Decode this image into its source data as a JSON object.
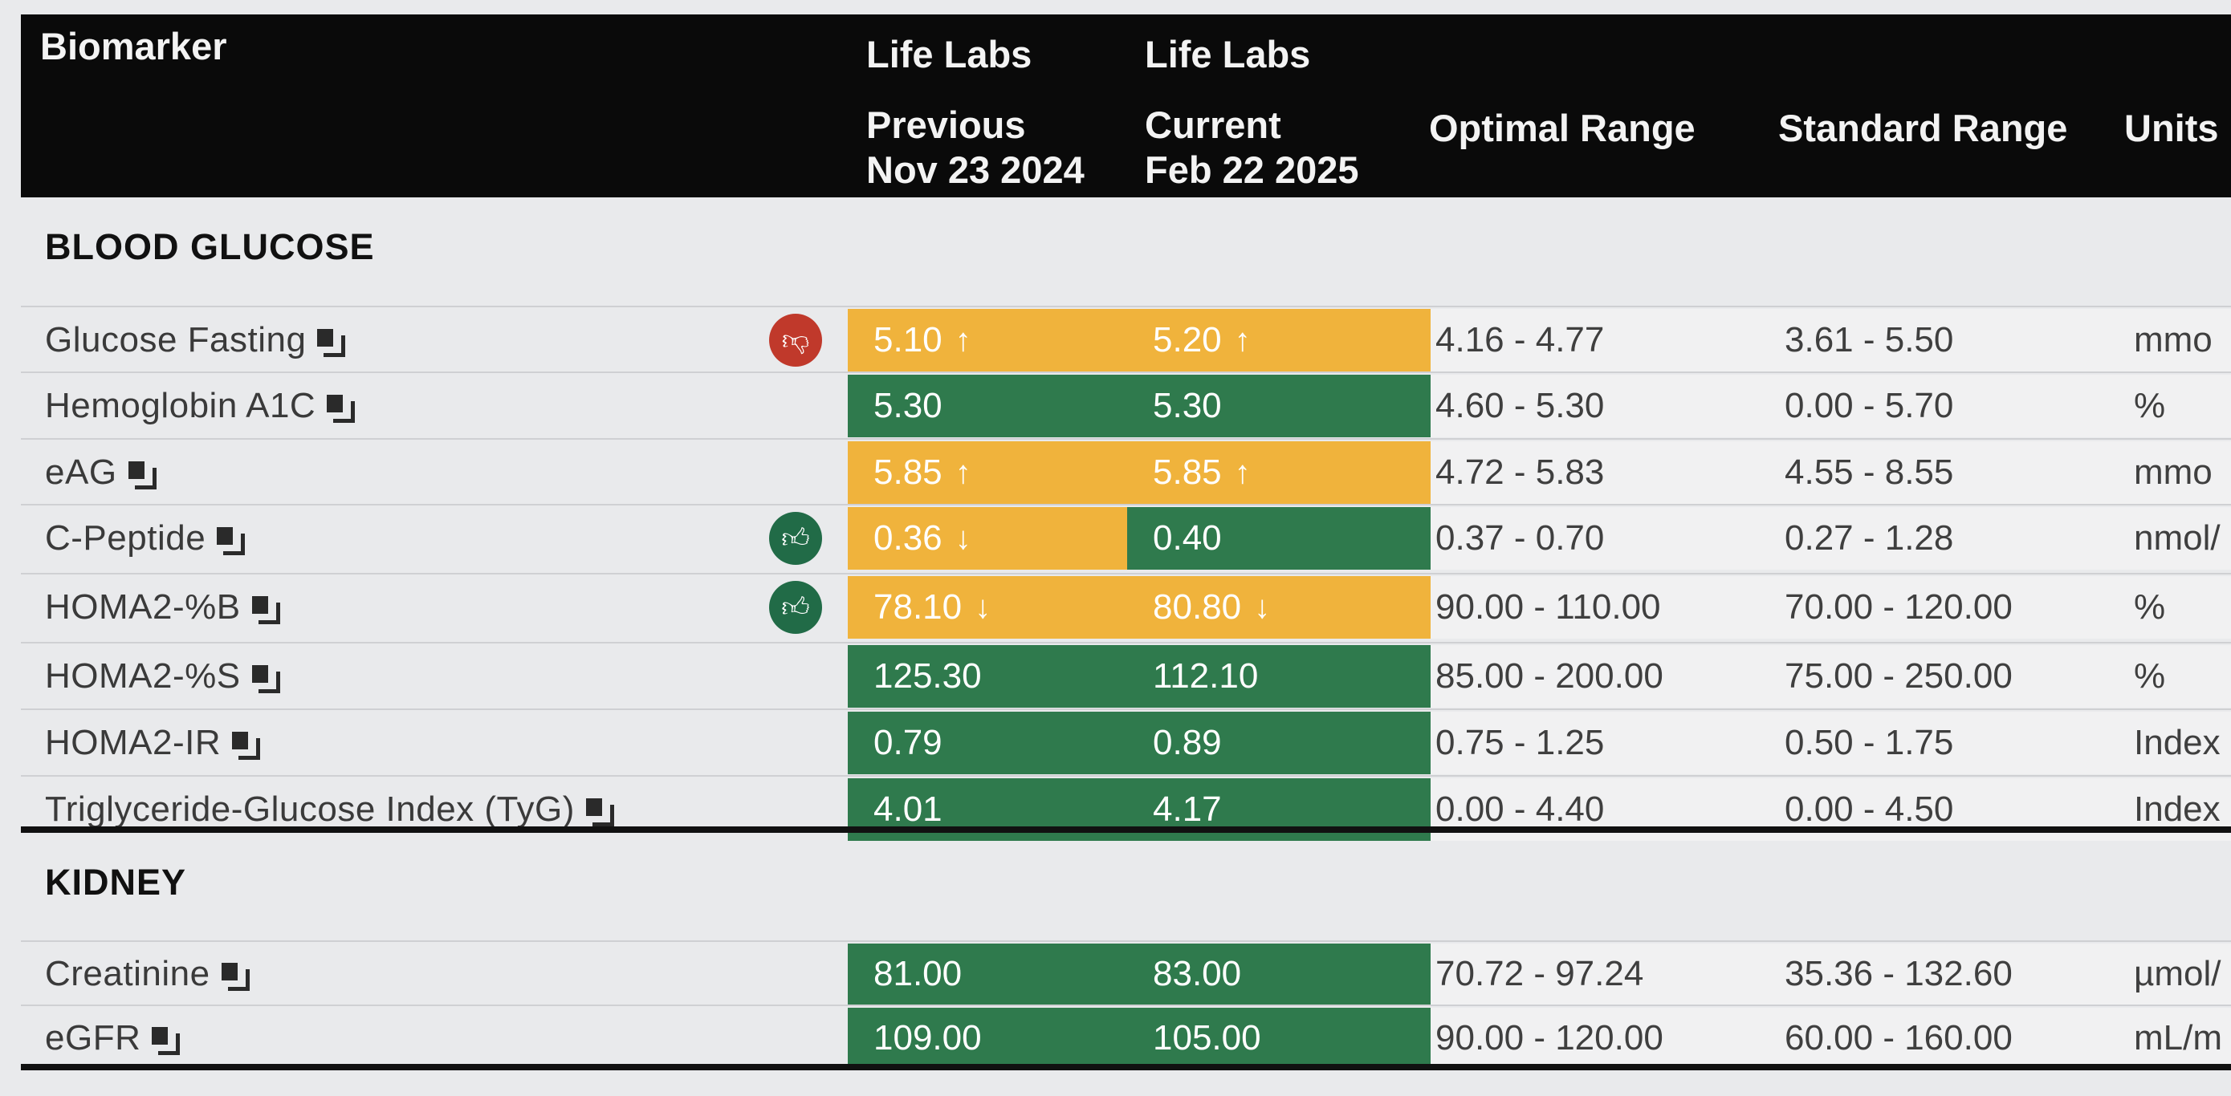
{
  "header": {
    "biomarker": "Biomarker",
    "prev_lab": "Life Labs",
    "prev_label": "Previous",
    "prev_date": "Nov 23 2024",
    "cur_lab": "Life Labs",
    "cur_label": "Current",
    "cur_date": "Feb 22 2025",
    "optimal": "Optimal Range",
    "standard": "Standard Range",
    "units": "Units"
  },
  "colors": {
    "in_range": "#2f7a4d",
    "out_of_range": "#f0b33c",
    "thumb_up": "#216b47",
    "thumb_down": "#c0392b"
  },
  "sections": [
    {
      "title": "BLOOD GLUCOSE",
      "rows": [
        {
          "name": "Glucose Fasting",
          "icon": "document-icon",
          "trend": "thumbs-down-icon",
          "prev": {
            "value": "5.10",
            "arrow": "↑",
            "status": "out-of-range"
          },
          "cur": {
            "value": "5.20",
            "arrow": "↑",
            "status": "out-of-range"
          },
          "optimal": "4.16 - 4.77",
          "standard": "3.61 - 5.50",
          "units": "mmo"
        },
        {
          "name": "Hemoglobin A1C",
          "icon": "document-icon",
          "trend": "",
          "prev": {
            "value": "5.30",
            "arrow": "",
            "status": "in-range"
          },
          "cur": {
            "value": "5.30",
            "arrow": "",
            "status": "in-range"
          },
          "optimal": "4.60 - 5.30",
          "standard": "0.00 - 5.70",
          "units": "%"
        },
        {
          "name": "eAG",
          "icon": "document-icon",
          "trend": "",
          "prev": {
            "value": "5.85",
            "arrow": "↑",
            "status": "out-of-range"
          },
          "cur": {
            "value": "5.85",
            "arrow": "↑",
            "status": "out-of-range"
          },
          "optimal": "4.72 - 5.83",
          "standard": "4.55 - 8.55",
          "units": "mmo"
        },
        {
          "name": "C-Peptide",
          "icon": "document-icon",
          "trend": "thumbs-up-icon",
          "prev": {
            "value": "0.36",
            "arrow": "↓",
            "status": "out-of-range"
          },
          "cur": {
            "value": "0.40",
            "arrow": "",
            "status": "in-range"
          },
          "optimal": "0.37 - 0.70",
          "standard": "0.27 - 1.28",
          "units": "nmol/"
        },
        {
          "name": "HOMA2-%B",
          "icon": "document-icon",
          "trend": "thumbs-up-icon",
          "prev": {
            "value": "78.10",
            "arrow": "↓",
            "status": "out-of-range"
          },
          "cur": {
            "value": "80.80",
            "arrow": "↓",
            "status": "out-of-range"
          },
          "optimal": "90.00 - 110.00",
          "standard": "70.00 - 120.00",
          "units": "%"
        },
        {
          "name": "HOMA2-%S",
          "icon": "document-icon",
          "trend": "",
          "prev": {
            "value": "125.30",
            "arrow": "",
            "status": "in-range"
          },
          "cur": {
            "value": "112.10",
            "arrow": "",
            "status": "in-range"
          },
          "optimal": "85.00 - 200.00",
          "standard": "75.00 - 250.00",
          "units": "%"
        },
        {
          "name": "HOMA2-IR",
          "icon": "document-icon",
          "trend": "",
          "prev": {
            "value": "0.79",
            "arrow": "",
            "status": "in-range"
          },
          "cur": {
            "value": "0.89",
            "arrow": "",
            "status": "in-range"
          },
          "optimal": "0.75 - 1.25",
          "standard": "0.50 - 1.75",
          "units": "Index"
        },
        {
          "name": "Triglyceride-Glucose Index (TyG)",
          "icon": "document-icon",
          "trend": "",
          "prev": {
            "value": "4.01",
            "arrow": "",
            "status": "in-range"
          },
          "cur": {
            "value": "4.17",
            "arrow": "",
            "status": "in-range"
          },
          "optimal": "0.00 - 4.40",
          "standard": "0.00 - 4.50",
          "units": "Index"
        }
      ]
    },
    {
      "title": "KIDNEY",
      "rows": [
        {
          "name": "Creatinine",
          "icon": "document-icon",
          "trend": "",
          "prev": {
            "value": "81.00",
            "arrow": "",
            "status": "in-range"
          },
          "cur": {
            "value": "83.00",
            "arrow": "",
            "status": "in-range"
          },
          "optimal": "70.72 - 97.24",
          "standard": "35.36 - 132.60",
          "units": "µmol/"
        },
        {
          "name": "eGFR",
          "icon": "document-icon",
          "trend": "",
          "prev": {
            "value": "109.00",
            "arrow": "",
            "status": "in-range"
          },
          "cur": {
            "value": "105.00",
            "arrow": "",
            "status": "in-range"
          },
          "optimal": "90.00 - 120.00",
          "standard": "60.00 - 160.00",
          "units": "mL/m"
        }
      ]
    }
  ]
}
